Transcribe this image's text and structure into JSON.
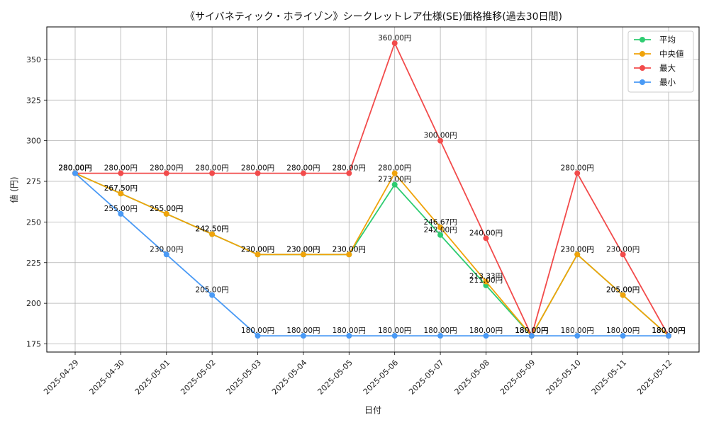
{
  "chart_data": {
    "type": "line",
    "title": "《サイバネティック・ホライゾン》シークレットレア仕様(SE)価格推移(過去30日間)",
    "xlabel": "日付",
    "ylabel": "値 (円)",
    "ylim": [
      170,
      370
    ],
    "yticks": [
      175,
      200,
      225,
      250,
      275,
      300,
      325,
      350
    ],
    "grid": true,
    "legend_position": "top-right",
    "label_suffix": "円",
    "categories": [
      "2025-04-29",
      "2025-04-30",
      "2025-05-01",
      "2025-05-02",
      "2025-05-03",
      "2025-05-04",
      "2025-05-05",
      "2025-05-06",
      "2025-05-07",
      "2025-05-08",
      "2025-05-09",
      "2025-05-10",
      "2025-05-11",
      "2025-05-12"
    ],
    "series": [
      {
        "name": "平均",
        "color": "#2ecc71",
        "values": [
          280.0,
          267.5,
          255.0,
          242.5,
          230.0,
          230.0,
          230.0,
          273.0,
          242.0,
          211.0,
          180.0,
          230.0,
          205.0,
          180.0
        ]
      },
      {
        "name": "中央値",
        "color": "#f0a30a",
        "values": [
          280.0,
          267.5,
          255.0,
          242.5,
          230.0,
          230.0,
          230.0,
          280.0,
          246.67,
          213.33,
          180.0,
          230.0,
          205.0,
          180.0
        ]
      },
      {
        "name": "最大",
        "color": "#f24b4b",
        "values": [
          280.0,
          280.0,
          280.0,
          280.0,
          280.0,
          280.0,
          280.0,
          360.0,
          300.0,
          240.0,
          180.0,
          280.0,
          230.0,
          180.0
        ]
      },
      {
        "name": "最小",
        "color": "#4a9af5",
        "values": [
          280.0,
          255.0,
          230.0,
          205.0,
          180.0,
          180.0,
          180.0,
          180.0,
          180.0,
          180.0,
          180.0,
          180.0,
          180.0,
          180.0
        ]
      }
    ]
  }
}
